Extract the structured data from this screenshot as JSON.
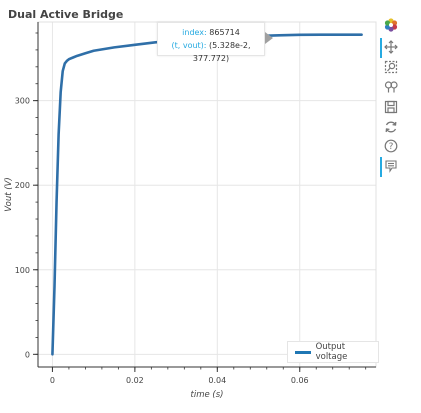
{
  "title": "Dual Active Bridge",
  "tooltip": {
    "index_label": "index:",
    "index_value": "865714",
    "coord_label": "(t, vout):",
    "coord_value": "(5.328e-2, 377.772)"
  },
  "legend": {
    "label": "Output voltage"
  },
  "toolbar": {
    "items": [
      {
        "icon": "bokeh-logo-icon"
      },
      {
        "icon": "pan-icon"
      },
      {
        "icon": "box-zoom-icon"
      },
      {
        "icon": "wheel-zoom-icon"
      },
      {
        "icon": "save-icon"
      },
      {
        "icon": "reset-icon"
      },
      {
        "icon": "help-icon"
      },
      {
        "icon": "hover-icon"
      }
    ]
  },
  "colors": {
    "line": "#2f6fa8",
    "grid": "#e6e6e6",
    "accent": "#26aae1"
  },
  "chart_data": {
    "type": "line",
    "title": "Dual Active Bridge",
    "xlabel": "time (s)",
    "ylabel": "Vout (V)",
    "xlim": [
      -0.0035,
      0.0785
    ],
    "ylim": [
      -15,
      393
    ],
    "x_ticks": [
      0,
      0.02,
      0.04,
      0.06
    ],
    "x_tick_labels": [
      "0",
      "0.02",
      "0.04",
      "0.06"
    ],
    "y_ticks": [
      0,
      100,
      200,
      300
    ],
    "y_tick_labels": [
      "0",
      "100",
      "200",
      "300"
    ],
    "grid": true,
    "legend_position": "bottom-right",
    "series": [
      {
        "name": "Output voltage",
        "x": [
          0,
          0.0005,
          0.001,
          0.0015,
          0.002,
          0.0025,
          0.003,
          0.0035,
          0.004,
          0.005,
          0.006,
          0.008,
          0.01,
          0.015,
          0.02,
          0.025,
          0.03,
          0.035,
          0.04,
          0.045,
          0.05,
          0.055,
          0.06,
          0.065,
          0.07,
          0.075
        ],
        "y": [
          0,
          80,
          180,
          260,
          310,
          335,
          344,
          347,
          349,
          351,
          353,
          356,
          359,
          363,
          366,
          369,
          371,
          373,
          374,
          375.5,
          376.5,
          377.3,
          377.8,
          378,
          378,
          378
        ]
      }
    ]
  }
}
